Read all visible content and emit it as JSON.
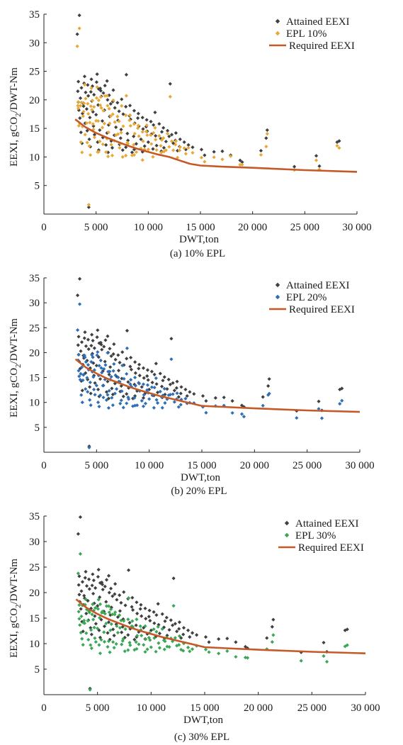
{
  "figure": {
    "ylabel_main": "EEXI, gCO",
    "ylabel_sub": "2",
    "ylabel_tail": "/DWT-Nm"
  },
  "colors": {
    "attained": "#404040",
    "required": "#c55a28",
    "axis": "#222222"
  },
  "chart_data": [
    {
      "type": "scatter",
      "caption": "(a) 10% EPL",
      "xlabel": "DWT,ton",
      "ylabel": "EEXI, gCO2/DWT-Nm",
      "xlim": [
        0,
        30000
      ],
      "ylim": [
        0,
        35
      ],
      "xticks": [
        0,
        5000,
        10000,
        15000,
        20000,
        25000,
        30000
      ],
      "xtick_labels": [
        "0",
        "5 000",
        "10 000",
        "15 000",
        "20 000",
        "25 000",
        "30 000"
      ],
      "yticks": [
        5,
        10,
        15,
        20,
        25,
        30,
        35
      ],
      "ytick_labels": [
        "5",
        "10",
        "15",
        "20",
        "25",
        "30",
        "35"
      ],
      "legend": [
        "Attained EEXI",
        "EPL 10%",
        "Required EEXI"
      ],
      "legend_position": "top-right",
      "epl_fraction": 0.1,
      "epl_color": "#e8a838",
      "series": [
        {
          "name": "Attained EEXI",
          "kind": "scatter"
        },
        {
          "name": "EPL 10%",
          "kind": "scatter"
        },
        {
          "name": "Required EEXI",
          "kind": "line",
          "x": [
            3000,
            4000,
            5000,
            6000,
            7000,
            8000,
            9000,
            10000,
            11000,
            12000,
            13000,
            14000,
            15000,
            17000,
            20000,
            25000,
            30000
          ],
          "y": [
            16.6,
            15.2,
            14.2,
            13.4,
            12.7,
            12.0,
            11.4,
            10.9,
            10.4,
            10.0,
            9.4,
            8.8,
            8.5,
            8.3,
            8.1,
            7.7,
            7.4
          ]
        }
      ]
    },
    {
      "type": "scatter",
      "caption": "(b) 20% EPL",
      "xlabel": "DWT,ton",
      "ylabel": "EEXI, gCO2/DWT-Nm",
      "xlim": [
        0,
        30000
      ],
      "ylim": [
        0,
        35
      ],
      "xticks": [
        0,
        5000,
        10000,
        15000,
        20000,
        25000,
        30000
      ],
      "xtick_labels": [
        "0",
        "5 000",
        "10 000",
        "15 000",
        "20 000",
        "25 000",
        "30 000"
      ],
      "yticks": [
        5,
        10,
        15,
        20,
        25,
        30,
        35
      ],
      "ytick_labels": [
        "5",
        "10",
        "15",
        "20",
        "25",
        "30",
        "35"
      ],
      "legend": [
        "Attained EEXI",
        "EPL 20%",
        "Required EEXI"
      ],
      "legend_position": "top-right",
      "epl_fraction": 0.2,
      "epl_color": "#2f6fb5",
      "series": [
        {
          "name": "Attained EEXI",
          "kind": "scatter"
        },
        {
          "name": "EPL 20%",
          "kind": "scatter"
        },
        {
          "name": "Required EEXI",
          "kind": "line",
          "x": [
            3000,
            4000,
            5000,
            6000,
            7000,
            8000,
            9000,
            10000,
            11000,
            12000,
            13000,
            14000,
            15000,
            17000,
            20000,
            25000,
            30000
          ],
          "y": [
            18.7,
            17.0,
            15.8,
            14.8,
            14.0,
            13.2,
            12.5,
            11.9,
            11.3,
            10.8,
            10.3,
            9.8,
            9.3,
            9.1,
            8.8,
            8.4,
            8.1
          ]
        }
      ]
    },
    {
      "type": "scatter",
      "caption": "(c) 30% EPL",
      "xlabel": "DWT,ton",
      "ylabel": "EEXI, gCO2/DWT-Nm",
      "xlim": [
        0,
        30000
      ],
      "ylim": [
        0,
        35
      ],
      "xticks": [
        0,
        5000,
        10000,
        15000,
        20000,
        25000,
        30000
      ],
      "xtick_labels": [
        "0",
        "5 000",
        "10 000",
        "15 000",
        "20 000",
        "25 000",
        "30 000"
      ],
      "yticks": [
        5,
        10,
        15,
        20,
        25,
        30,
        35
      ],
      "ytick_labels": [
        "5",
        "10",
        "15",
        "20",
        "25",
        "30",
        "35"
      ],
      "legend": [
        "Attained EEXI",
        "EPL 30%",
        "Required EEXI"
      ],
      "legend_position": "top-right",
      "epl_fraction": 0.3,
      "epl_color": "#3aa854",
      "series": [
        {
          "name": "Attained EEXI",
          "kind": "scatter"
        },
        {
          "name": "EPL 30%",
          "kind": "scatter"
        },
        {
          "name": "Required EEXI",
          "kind": "line",
          "x": [
            3000,
            4000,
            5000,
            6000,
            7000,
            8000,
            9000,
            10000,
            11000,
            12000,
            13000,
            14000,
            15000,
            17000,
            20000,
            25000,
            30000
          ],
          "y": [
            18.7,
            17.0,
            15.8,
            14.8,
            14.0,
            13.2,
            12.5,
            11.9,
            11.3,
            10.8,
            10.3,
            9.8,
            9.3,
            9.1,
            8.8,
            8.4,
            8.1
          ]
        }
      ]
    }
  ],
  "attained_points": [
    [
      3200,
      31.5
    ],
    [
      3400,
      34.8
    ],
    [
      3300,
      23.2
    ],
    [
      3600,
      22.1
    ],
    [
      3900,
      24.1
    ],
    [
      4200,
      22.6
    ],
    [
      4500,
      21.4
    ],
    [
      4800,
      20.9
    ],
    [
      5100,
      24.5
    ],
    [
      5400,
      22.0
    ],
    [
      5700,
      21.2
    ],
    [
      6100,
      20.0
    ],
    [
      6400,
      19.3
    ],
    [
      6800,
      18.6
    ],
    [
      7200,
      18.0
    ],
    [
      7600,
      17.5
    ],
    [
      7900,
      24.4
    ],
    [
      8300,
      16.6
    ],
    [
      8700,
      15.9
    ],
    [
      9100,
      15.4
    ],
    [
      9500,
      14.9
    ],
    [
      9900,
      14.5
    ],
    [
      10300,
      14.0
    ],
    [
      10700,
      13.7
    ],
    [
      11200,
      13.2
    ],
    [
      11700,
      12.7
    ],
    [
      12100,
      22.8
    ],
    [
      12400,
      12.4
    ],
    [
      13000,
      11.8
    ],
    [
      13600,
      11.3
    ],
    [
      15100,
      11.3
    ],
    [
      15400,
      10.3
    ],
    [
      16300,
      10.9
    ],
    [
      17100,
      11.0
    ],
    [
      17900,
      10.3
    ],
    [
      18800,
      9.4
    ],
    [
      19000,
      9.1
    ],
    [
      20800,
      11.1
    ],
    [
      21400,
      14.7
    ],
    [
      21300,
      13.3
    ],
    [
      24000,
      8.3
    ],
    [
      26100,
      10.2
    ],
    [
      26400,
      8.4
    ],
    [
      28100,
      12.6
    ],
    [
      28300,
      12.8
    ],
    [
      4300,
      1.2
    ],
    [
      3700,
      17.6
    ],
    [
      4100,
      18.4
    ],
    [
      4600,
      19.8
    ],
    [
      5200,
      19.1
    ],
    [
      5800,
      18.2
    ],
    [
      6300,
      17.1
    ],
    [
      3500,
      20.3
    ],
    [
      3800,
      18.9
    ],
    [
      4400,
      16.9
    ],
    [
      5000,
      17.4
    ],
    [
      5600,
      16.3
    ],
    [
      6200,
      15.6
    ],
    [
      6900,
      15.2
    ],
    [
      7400,
      14.8
    ],
    [
      8000,
      14.1
    ],
    [
      8600,
      13.6
    ],
    [
      9300,
      13.1
    ],
    [
      10000,
      12.6
    ],
    [
      10800,
      12.0
    ],
    [
      11500,
      11.6
    ],
    [
      12800,
      11.1
    ],
    [
      3300,
      19.6
    ],
    [
      4000,
      21.3
    ],
    [
      4700,
      17.9
    ],
    [
      5500,
      20.6
    ],
    [
      6600,
      19.7
    ],
    [
      7100,
      16.4
    ],
    [
      8200,
      17.2
    ],
    [
      9000,
      16.8
    ],
    [
      9800,
      15.3
    ],
    [
      10500,
      15.6
    ],
    [
      11300,
      14.4
    ],
    [
      12000,
      13.6
    ],
    [
      12600,
      12.9
    ],
    [
      3450,
      16.8
    ],
    [
      3950,
      15.9
    ],
    [
      4750,
      15.4
    ],
    [
      5350,
      14.7
    ],
    [
      6050,
      14.2
    ],
    [
      6750,
      13.8
    ],
    [
      7350,
      13.3
    ],
    [
      8050,
      12.9
    ],
    [
      8850,
      12.3
    ],
    [
      9650,
      11.9
    ],
    [
      10450,
      11.4
    ],
    [
      11250,
      11.0
    ],
    [
      4150,
      14.6
    ],
    [
      4850,
      13.9
    ],
    [
      5650,
      13.4
    ],
    [
      6450,
      12.8
    ],
    [
      7250,
      12.2
    ],
    [
      7850,
      11.7
    ],
    [
      8650,
      11.3
    ],
    [
      9450,
      10.9
    ],
    [
      3550,
      14.3
    ],
    [
      4350,
      13.1
    ],
    [
      5150,
      12.6
    ],
    [
      5950,
      12.1
    ],
    [
      6550,
      11.6
    ],
    [
      7550,
      11.2
    ],
    [
      8450,
      10.8
    ],
    [
      3650,
      12.4
    ],
    [
      4450,
      11.8
    ],
    [
      5250,
      11.2
    ],
    [
      6150,
      10.8
    ],
    [
      3350,
      18.2
    ],
    [
      3750,
      19.4
    ],
    [
      4250,
      20.7
    ],
    [
      4650,
      22.4
    ],
    [
      5050,
      23.1
    ],
    [
      5450,
      21.6
    ],
    [
      5850,
      22.5
    ],
    [
      6250,
      20.8
    ],
    [
      6650,
      21.7
    ],
    [
      7050,
      19.5
    ],
    [
      7450,
      20.1
    ],
    [
      7850,
      18.8
    ],
    [
      8250,
      19.0
    ],
    [
      8650,
      18.1
    ],
    [
      9050,
      17.6
    ],
    [
      9450,
      16.9
    ],
    [
      9850,
      16.5
    ],
    [
      10250,
      16.2
    ],
    [
      10650,
      17.8
    ],
    [
      11050,
      15.8
    ],
    [
      11450,
      15.1
    ],
    [
      11850,
      14.6
    ],
    [
      12250,
      13.9
    ],
    [
      12650,
      14.2
    ],
    [
      13050,
      13.1
    ],
    [
      13450,
      12.6
    ],
    [
      13850,
      12.1
    ],
    [
      14250,
      11.7
    ],
    [
      3250,
      21.5
    ],
    [
      3850,
      22.9
    ],
    [
      4550,
      23.6
    ],
    [
      5250,
      21.9
    ],
    [
      6050,
      23.3
    ]
  ]
}
